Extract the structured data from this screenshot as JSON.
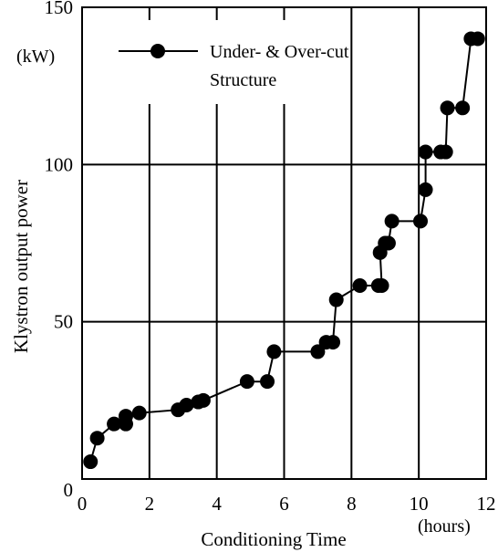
{
  "chart_data": {
    "type": "line",
    "title": "",
    "xlabel": "Conditioning Time",
    "x_unit": "(hours)",
    "ylabel": "Klystron output power",
    "y_unit": "(kW)",
    "xlim": [
      0,
      12
    ],
    "ylim": [
      0,
      150
    ],
    "x_ticks": [
      0,
      2,
      4,
      6,
      8,
      10,
      12
    ],
    "y_ticks": [
      0,
      50,
      100,
      150
    ],
    "x_tick_labels": [
      "0",
      "2",
      "4",
      "6",
      "8",
      "10",
      "12"
    ],
    "y_tick_labels": [
      "0",
      "50",
      "100",
      "150"
    ],
    "grid": "major",
    "legend_position": "top-left",
    "series": [
      {
        "name": "Under- & Over-cut Structure",
        "legend_lines": [
          "Under- & Over-cut",
          "Structure"
        ],
        "marker": "filled-circle",
        "color": "#000000",
        "points": [
          [
            0.25,
            5.5
          ],
          [
            0.45,
            13
          ],
          [
            0.95,
            17.5
          ],
          [
            1.3,
            17.5
          ],
          [
            1.3,
            20
          ],
          [
            1.7,
            21
          ],
          [
            2.85,
            22
          ],
          [
            3.1,
            23.5
          ],
          [
            3.45,
            24.5
          ],
          [
            3.6,
            25
          ],
          [
            4.9,
            31
          ],
          [
            5.5,
            31
          ],
          [
            5.7,
            40.5
          ],
          [
            7.0,
            40.5
          ],
          [
            7.25,
            43.5
          ],
          [
            7.45,
            43.5
          ],
          [
            7.55,
            57
          ],
          [
            8.25,
            61.5
          ],
          [
            8.8,
            61.5
          ],
          [
            8.9,
            61.5
          ],
          [
            8.85,
            72
          ],
          [
            9.0,
            75
          ],
          [
            9.1,
            75
          ],
          [
            9.2,
            82
          ],
          [
            10.05,
            82
          ],
          [
            10.2,
            92
          ],
          [
            10.2,
            104
          ],
          [
            10.65,
            104
          ],
          [
            10.8,
            104
          ],
          [
            10.85,
            118
          ],
          [
            11.3,
            118
          ],
          [
            11.55,
            140
          ],
          [
            11.75,
            140
          ]
        ]
      }
    ]
  }
}
